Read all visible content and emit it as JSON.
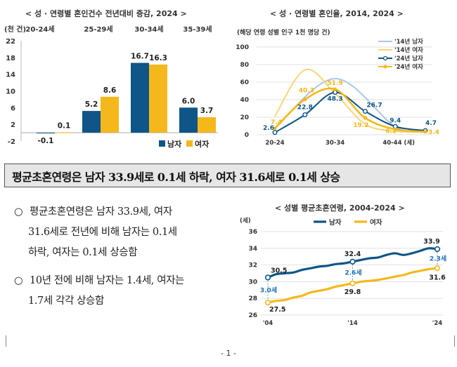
{
  "headline": "평균초혼연령은 남자 33.9세로 0.1세 하락, 여자 31.6세로 0.1세 상승",
  "bullets": [
    {
      "mark": "○",
      "lines": [
        "평균초혼연령은 남자 33.9세, 여자",
        "31.6세로 전년에 비해 남자는 0.1세",
        "하락, 여자는 0.1세 상승함"
      ]
    },
    {
      "mark": "○",
      "lines": [
        "10년 전에 비해 남자는 1.4세, 여자는",
        "1.7세 각각 상승함"
      ]
    }
  ],
  "page_number": "- 1 -",
  "colors": {
    "male": "#0f5587",
    "female": "#f5b81c",
    "male14": "#a9c8e6",
    "female14": "#f8d57a",
    "grid": "#d9d9d9"
  },
  "chart_data": [
    {
      "type": "bar",
      "title": "< 성 · 연령별 혼인건수 전년대비 증감, 2024 >",
      "unit_label": "(천 건)",
      "categories": [
        "20-24세",
        "25-29세",
        "30-34세",
        "35-39세"
      ],
      "series": [
        {
          "name": "남자",
          "values": [
            -0.1,
            5.2,
            16.7,
            6.0
          ],
          "labels": [
            "-0.1",
            "5.2",
            "16.7",
            "6.0"
          ]
        },
        {
          "name": "여자",
          "values": [
            0.1,
            8.6,
            16.3,
            3.7
          ],
          "labels": [
            "0.1",
            "8.6",
            "16.3",
            "3.7"
          ]
        }
      ],
      "ylim": [
        -2,
        22
      ],
      "yticks": [
        "-2",
        "2",
        "6",
        "10",
        "14",
        "18",
        "22"
      ],
      "legend_position": "bottom-right"
    },
    {
      "type": "line",
      "title": "< 성 · 연령별 혼인율, 2014, 2024 >",
      "subtitle": "(해당 연령 성별 인구 1천 명당 건)",
      "x_labels": [
        "20-24",
        "30-34",
        "40-44 (세)"
      ],
      "ylim": [
        0,
        100
      ],
      "yticks": [
        "0",
        "20",
        "40",
        "60",
        "80",
        "100"
      ],
      "series": [
        {
          "name": "'14년 남자",
          "points": [
            [
              22,
              7
            ],
            [
              32,
              64
            ],
            [
              42,
              9
            ],
            [
              47,
              4
            ]
          ]
        },
        {
          "name": "'14년 여자",
          "points": [
            [
              22,
              21
            ],
            [
              27,
              74
            ],
            [
              32,
              47
            ],
            [
              37,
              12
            ],
            [
              42,
              4
            ],
            [
              47,
              3
            ]
          ]
        },
        {
          "name": "'24년 남자",
          "points": [
            [
              22,
              2.6
            ],
            [
              27,
              22.8
            ],
            [
              32,
              48.3
            ],
            [
              37,
              26.7
            ],
            [
              42,
              9.4
            ],
            [
              47,
              4.7
            ]
          ]
        },
        {
          "name": "'24년 여자",
          "points": [
            [
              22,
              7.4
            ],
            [
              27,
              40.3
            ],
            [
              32,
              51.9
            ],
            [
              37,
              19.2
            ],
            [
              42,
              6.2
            ],
            [
              47,
              3.4
            ]
          ]
        }
      ],
      "data_labels": {
        "male24": [
          "2.6",
          "22.8",
          "48.3",
          "26.7",
          "9.4",
          "4.7"
        ],
        "female24": [
          "7.4",
          "40.3",
          "51.9",
          "19.2",
          "6.2",
          "3.4"
        ]
      },
      "legend_position": "top-right"
    },
    {
      "type": "line",
      "title": "< 성별 평균초혼연령, 2004-2024 >",
      "unit_label": "(세)",
      "x_labels": [
        "'04",
        "'14",
        "'24"
      ],
      "ylim": [
        26,
        36
      ],
      "yticks": [
        "26",
        "28",
        "30",
        "32",
        "34",
        "36"
      ],
      "series": [
        {
          "name": "남자",
          "x": [
            2004,
            2005,
            2006,
            2007,
            2008,
            2009,
            2010,
            2011,
            2012,
            2013,
            2014,
            2015,
            2016,
            2017,
            2018,
            2019,
            2020,
            2021,
            2022,
            2023,
            2024
          ],
          "values": [
            30.5,
            30.9,
            31.0,
            31.1,
            31.4,
            31.6,
            31.8,
            31.9,
            32.1,
            32.2,
            32.4,
            32.6,
            32.8,
            32.9,
            33.2,
            33.4,
            33.2,
            33.4,
            33.7,
            34.0,
            33.9
          ]
        },
        {
          "name": "여자",
          "x": [
            2004,
            2005,
            2006,
            2007,
            2008,
            2009,
            2010,
            2011,
            2012,
            2013,
            2014,
            2015,
            2016,
            2017,
            2018,
            2019,
            2020,
            2021,
            2022,
            2023,
            2024
          ],
          "values": [
            27.5,
            27.7,
            27.8,
            28.1,
            28.3,
            28.7,
            28.9,
            29.1,
            29.4,
            29.6,
            29.8,
            30.0,
            30.1,
            30.2,
            30.4,
            30.6,
            30.8,
            31.1,
            31.3,
            31.5,
            31.6
          ]
        }
      ],
      "point_labels": {
        "m04": "30.5",
        "m14": "32.4",
        "m24": "33.9",
        "f04": "27.5",
        "f14": "29.8",
        "f24": "31.6"
      },
      "gap_labels": [
        "3.0세",
        "2.6세",
        "2.3세"
      ],
      "legend_position": "top"
    }
  ]
}
